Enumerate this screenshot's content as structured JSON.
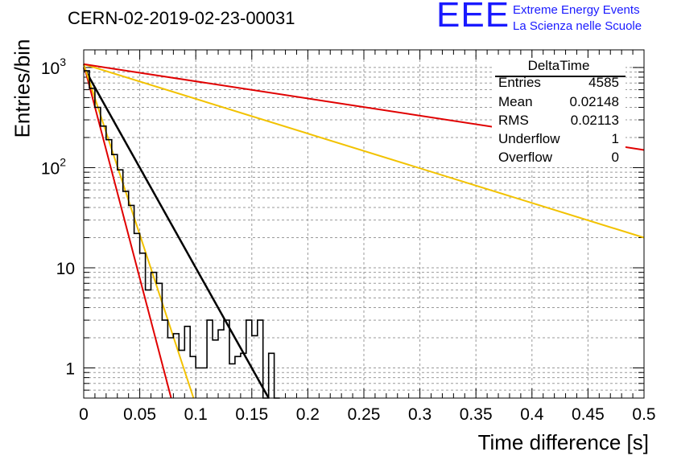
{
  "title": "CERN-02-2019-02-23-00031",
  "logo": {
    "text": "EEE",
    "line1": "Extreme Energy Events",
    "line2": "La Scienza nelle Scuole",
    "color": "#1a1aff"
  },
  "stats": {
    "name": "DeltaTime",
    "rows": [
      {
        "label": "Entries",
        "value": "4585"
      },
      {
        "label": "Mean",
        "value": "0.02148"
      },
      {
        "label": "RMS",
        "value": "0.02113"
      },
      {
        "label": "Underflow",
        "value": "1"
      },
      {
        "label": "Overflow",
        "value": "0"
      }
    ]
  },
  "chart_data": {
    "type": "line",
    "title": "CERN-02-2019-02-23-00031",
    "xlabel": "Time difference [s]",
    "ylabel": "Entries/bin",
    "xlim": [
      0,
      0.5
    ],
    "ylim": [
      0.5,
      1500
    ],
    "yscale": "log",
    "grid": true,
    "x_ticks": [
      0,
      0.05,
      0.1,
      0.15,
      0.2,
      0.25,
      0.3,
      0.35,
      0.4,
      0.45,
      0.5
    ],
    "x_tick_labels": [
      "0",
      "0.05",
      "0.1",
      "0.15",
      "0.2",
      "0.25",
      "0.3",
      "0.35",
      "0.4",
      "0.45",
      "0.5"
    ],
    "y_tick_labels": [
      {
        "value": 1,
        "base": "1",
        "exp": ""
      },
      {
        "value": 10,
        "base": "10",
        "exp": ""
      },
      {
        "value": 100,
        "base": "10",
        "exp": "2"
      },
      {
        "value": 1000,
        "base": "10",
        "exp": "3"
      }
    ],
    "histogram": {
      "name": "DeltaTime",
      "bin_width": 0.005,
      "bin_start": 0,
      "values": [
        930,
        620,
        400,
        260,
        190,
        135,
        95,
        58,
        42,
        22,
        14,
        6,
        9,
        7,
        3,
        2,
        2.2,
        1.5,
        2.6,
        1.3,
        1,
        1,
        3,
        1.9,
        2.4,
        3,
        1.1,
        1.3,
        1.4,
        3,
        2.1,
        3,
        0.5,
        1.4,
        0
      ]
    },
    "series": [
      {
        "name": "fit",
        "color": "#000000",
        "width": 2.5,
        "x": [
          0,
          0.165
        ],
        "y": [
          1000,
          0.5
        ]
      },
      {
        "name": "red-steep",
        "color": "#e00000",
        "width": 2,
        "x": [
          0,
          0.078
        ],
        "y": [
          1080,
          0.5
        ]
      },
      {
        "name": "yellow-steep",
        "color": "#f2c200",
        "width": 2,
        "x": [
          0,
          0.098
        ],
        "y": [
          1080,
          0.5
        ]
      },
      {
        "name": "yellow-shallow",
        "color": "#f2c200",
        "width": 2,
        "x": [
          0,
          0.5
        ],
        "y": [
          1080,
          20
        ]
      },
      {
        "name": "red-shallow",
        "color": "#e00000",
        "width": 2,
        "x": [
          0,
          0.5
        ],
        "y": [
          1080,
          150
        ]
      }
    ]
  }
}
